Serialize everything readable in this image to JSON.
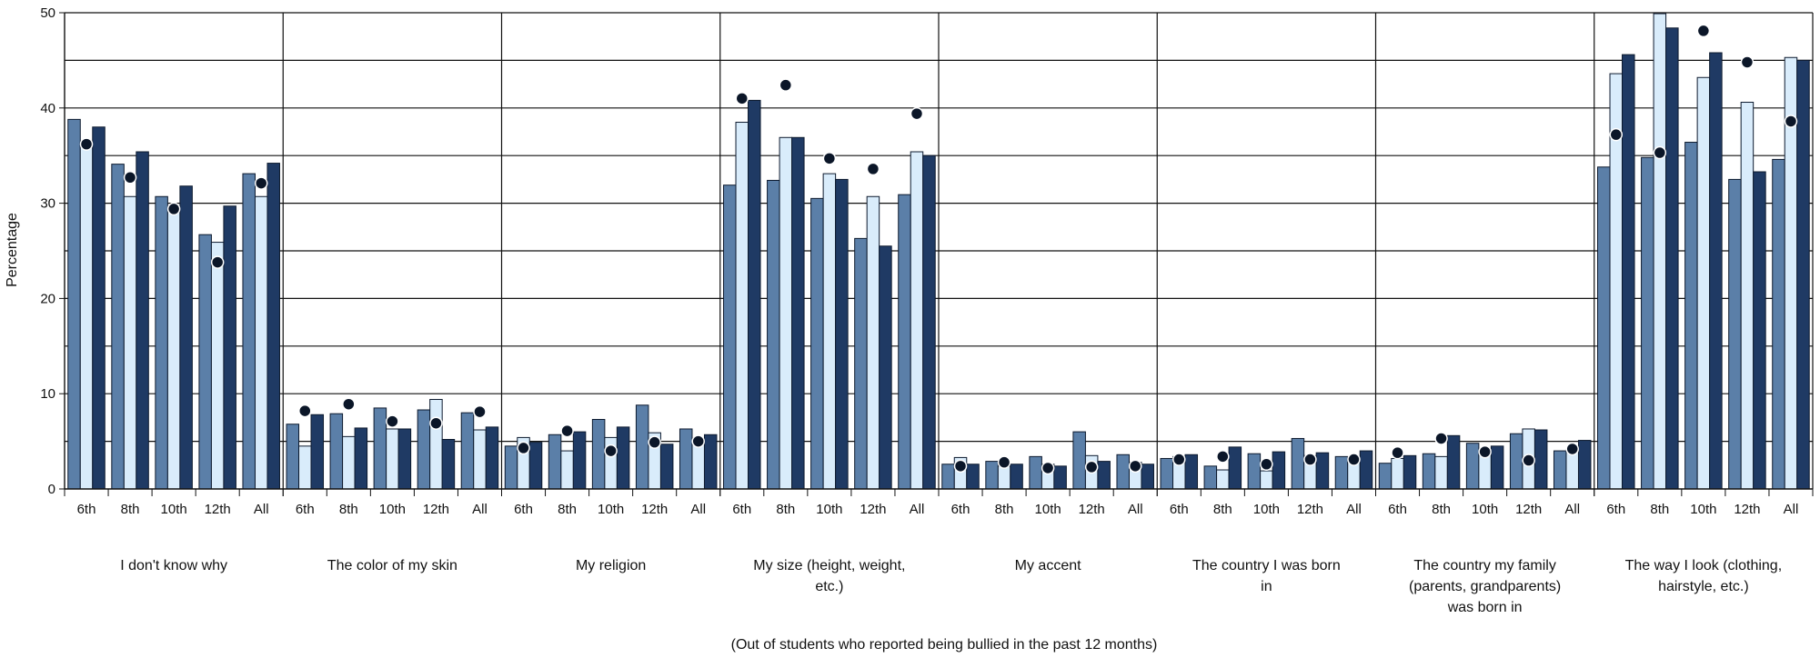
{
  "chart_data": {
    "type": "bar",
    "ylabel": "Percentage",
    "ylim": [
      0,
      50
    ],
    "yticks": [
      "0",
      "10",
      "20",
      "30",
      "40",
      "50"
    ],
    "gridlines": [
      5,
      10,
      15,
      20,
      25,
      30,
      35,
      40,
      45,
      50
    ],
    "footnote": "(Out of students who reported being bullied in the past 12 months)",
    "grades": [
      "6th",
      "8th",
      "10th",
      "12th",
      "All"
    ],
    "series_colors": [
      "#5b7fa8",
      "#d9ecfb",
      "#1f3a64"
    ],
    "marker_color": "#0b1628",
    "groups": [
      {
        "label_lines": [
          "I don't know why"
        ],
        "values": [
          [
            38.8,
            36.3,
            38.0
          ],
          [
            34.1,
            30.7,
            35.4
          ],
          [
            30.7,
            29.5,
            31.8
          ],
          [
            26.7,
            25.9,
            29.7
          ],
          [
            33.1,
            30.7,
            34.2
          ]
        ],
        "markers": [
          36.2,
          32.7,
          29.4,
          23.8,
          32.1
        ]
      },
      {
        "label_lines": [
          "The color of my skin"
        ],
        "values": [
          [
            6.8,
            4.5,
            7.8
          ],
          [
            7.9,
            5.5,
            6.4
          ],
          [
            8.5,
            6.3,
            6.3
          ],
          [
            8.3,
            9.4,
            5.2
          ],
          [
            8.0,
            6.2,
            6.5
          ]
        ],
        "markers": [
          8.2,
          8.9,
          7.1,
          6.9,
          8.1
        ]
      },
      {
        "label_lines": [
          "My religion"
        ],
        "values": [
          [
            4.5,
            5.4,
            4.9
          ],
          [
            5.7,
            4.0,
            6.0
          ],
          [
            7.3,
            5.4,
            6.5
          ],
          [
            8.8,
            5.9,
            4.7
          ],
          [
            6.3,
            5.2,
            5.7
          ]
        ],
        "markers": [
          4.3,
          6.1,
          4.0,
          4.9,
          5.0
        ]
      },
      {
        "label_lines": [
          "My size (height, weight,",
          "etc.)"
        ],
        "values": [
          [
            31.9,
            38.5,
            40.8
          ],
          [
            32.4,
            36.9,
            36.9
          ],
          [
            30.5,
            33.1,
            32.5
          ],
          [
            26.3,
            30.7,
            25.5
          ],
          [
            30.9,
            35.4,
            35.0
          ]
        ],
        "markers": [
          41.0,
          42.4,
          34.7,
          33.6,
          39.4
        ]
      },
      {
        "label_lines": [
          "My accent"
        ],
        "values": [
          [
            2.6,
            3.3,
            2.6
          ],
          [
            2.9,
            2.4,
            2.6
          ],
          [
            3.4,
            2.6,
            2.4
          ],
          [
            6.0,
            3.5,
            2.9
          ],
          [
            3.6,
            2.8,
            2.6
          ]
        ],
        "markers": [
          2.4,
          2.8,
          2.2,
          2.3,
          2.4
        ]
      },
      {
        "label_lines": [
          "The country I was born",
          "in"
        ],
        "values": [
          [
            3.2,
            3.4,
            3.6
          ],
          [
            2.4,
            2.0,
            4.4
          ],
          [
            3.7,
            1.9,
            3.9
          ],
          [
            5.3,
            3.5,
            3.8
          ],
          [
            3.4,
            2.8,
            4.0
          ]
        ],
        "markers": [
          3.1,
          3.4,
          2.6,
          3.1,
          3.1
        ]
      },
      {
        "label_lines": [
          "The country my family",
          "(parents, grandparents)",
          "was born in"
        ],
        "values": [
          [
            2.7,
            3.2,
            3.5
          ],
          [
            3.7,
            3.4,
            5.6
          ],
          [
            4.8,
            3.8,
            4.5
          ],
          [
            5.8,
            6.3,
            6.2
          ],
          [
            4.0,
            4.2,
            5.1
          ]
        ],
        "markers": [
          3.8,
          5.3,
          3.9,
          3.0,
          4.2
        ]
      },
      {
        "label_lines": [
          "The way I look (clothing,",
          "hairstyle, etc.)"
        ],
        "values": [
          [
            33.8,
            43.6,
            45.6
          ],
          [
            34.8,
            49.9,
            48.4
          ],
          [
            36.4,
            43.2,
            45.8
          ],
          [
            32.5,
            40.6,
            33.3
          ],
          [
            34.6,
            45.3,
            45.0
          ]
        ],
        "markers": [
          37.2,
          35.3,
          48.1,
          44.8,
          38.6
        ]
      }
    ]
  }
}
